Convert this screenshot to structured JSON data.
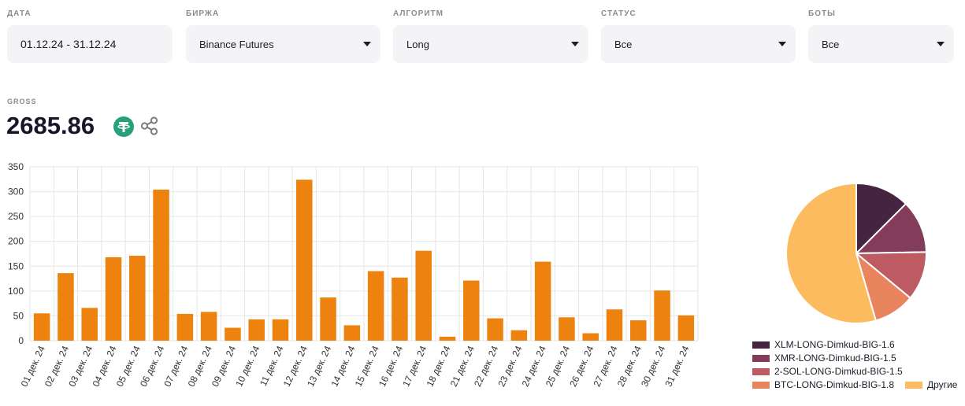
{
  "filters": [
    {
      "label": "ДАТА",
      "value": "01.12.24 - 31.12.24",
      "dropdown": false
    },
    {
      "label": "БИРЖА",
      "value": "Binance Futures",
      "dropdown": true
    },
    {
      "label": "АЛГОРИТМ",
      "value": "Long",
      "dropdown": true
    },
    {
      "label": "СТАТУС",
      "value": "Все",
      "dropdown": true
    },
    {
      "label": "БОТЫ",
      "value": "Все",
      "dropdown": true
    }
  ],
  "gross": {
    "label": "GROSS",
    "value": "2685.86",
    "currency_icon": "tether-usdt-icon",
    "share_icon": "share-icon"
  },
  "colors": {
    "bar": "#ee820f",
    "grid": "#e6e6e6",
    "tether": "#26a17b"
  },
  "chart_data": [
    {
      "type": "bar",
      "categories": [
        "01 дек. 24",
        "02 дек. 24",
        "03 дек. 24",
        "04 дек. 24",
        "05 дек. 24",
        "06 дек. 24",
        "07 дек. 24",
        "08 дек. 24",
        "09 дек. 24",
        "10 дек. 24",
        "11 дек. 24",
        "12 дек. 24",
        "13 дек. 24",
        "14 дек. 24",
        "15 дек. 24",
        "16 дек. 24",
        "17 дек. 24",
        "18 дек. 24",
        "21 дек. 24",
        "22 дек. 24",
        "23 дек. 24",
        "24 дек. 24",
        "25 дек. 24",
        "26 дек. 24",
        "27 дек. 24",
        "28 дек. 24",
        "30 дек. 24",
        "31 дек. 24"
      ],
      "values": [
        55,
        136,
        66,
        168,
        171,
        304,
        54,
        58,
        26,
        43,
        43,
        324,
        87,
        31,
        140,
        127,
        181,
        8,
        121,
        45,
        21,
        159,
        47,
        15,
        63,
        41,
        101,
        51
      ],
      "ylim": [
        0,
        350
      ],
      "yticks": [
        0,
        50,
        100,
        150,
        200,
        250,
        300,
        350
      ],
      "grid": true
    },
    {
      "type": "pie",
      "labels": [
        "XLM-LONG-Dimkud-BIG-1.6",
        "XMR-LONG-Dimkud-BIG-1.5",
        "2-SOL-LONG-Dimkud-BIG-1.5",
        "BTC-LONG-Dimkud-BIG-1.8",
        "Другие"
      ],
      "values": [
        12.5,
        12.2,
        11.3,
        9.5,
        54.5
      ],
      "colors": [
        "#45243f",
        "#833d5b",
        "#bd5a62",
        "#e9855e",
        "#fdbb5f"
      ],
      "legend": "bottom"
    }
  ]
}
